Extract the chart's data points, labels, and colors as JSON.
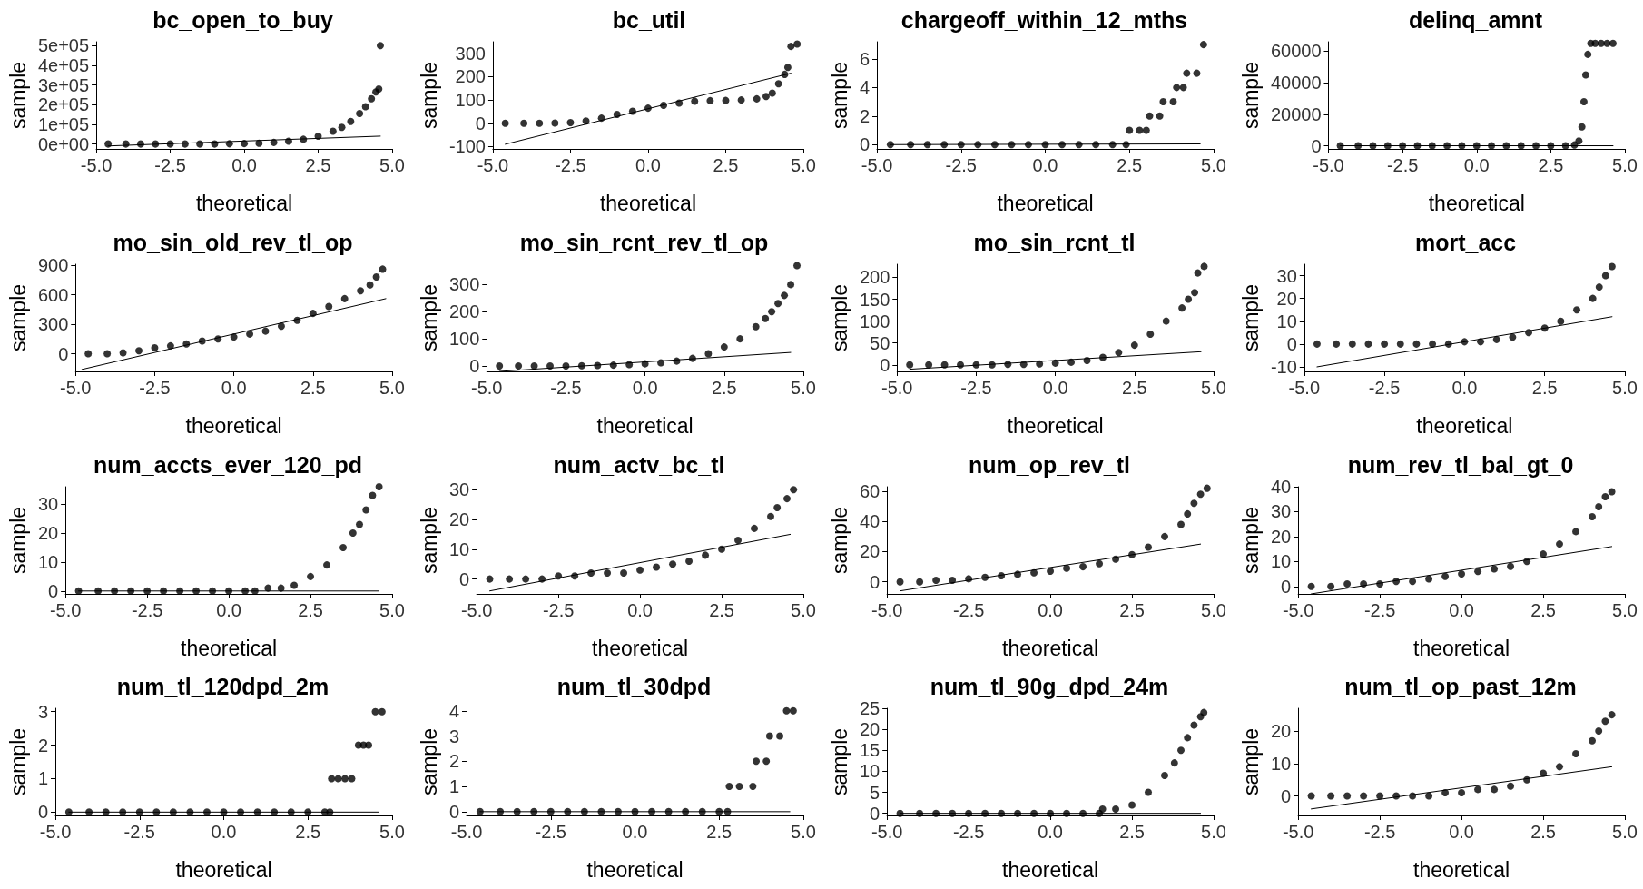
{
  "chart_data": [
    {
      "type": "scatter",
      "title": "bc_open_to_buy",
      "xlabel": "theoretical",
      "ylabel": "sample",
      "xlim": [
        -5,
        5
      ],
      "xticks": [
        {
          "value": -5,
          "label": "-5.0"
        },
        {
          "value": -2.5,
          "label": "-2.5"
        },
        {
          "value": 0,
          "label": "0.0"
        },
        {
          "value": 2.5,
          "label": "2.5"
        },
        {
          "value": 5,
          "label": "5.0"
        }
      ],
      "ylim": [
        -25000,
        520000
      ],
      "yticks": [
        {
          "value": 0,
          "label": "0e+00"
        },
        {
          "value": 100000,
          "label": "1e+05"
        },
        {
          "value": 200000,
          "label": "2e+05"
        },
        {
          "value": 300000,
          "label": "3e+05"
        },
        {
          "value": 400000,
          "label": "4e+05"
        },
        {
          "value": 500000,
          "label": "5e+05"
        }
      ],
      "grid": false,
      "series": [
        {
          "type": "scatter",
          "color": "#000000",
          "marker": "circle",
          "x": [
            -4.6,
            -4.0,
            -3.5,
            -3.0,
            -2.5,
            -2.0,
            -1.5,
            -1.0,
            -0.5,
            0,
            0.5,
            1.0,
            1.5,
            2.0,
            2.5,
            3.0,
            3.3,
            3.6,
            3.9,
            4.1,
            4.3,
            4.45,
            4.55,
            4.6
          ],
          "values": [
            0,
            0,
            0,
            0,
            0,
            0,
            0,
            0,
            1000,
            2000,
            4000,
            8000,
            14000,
            24000,
            40000,
            65000,
            85000,
            115000,
            155000,
            190000,
            230000,
            265000,
            280000,
            500000
          ]
        },
        {
          "type": "line",
          "color": "#000000",
          "marker": "none",
          "line_style": "solid",
          "x": [
            -4.6,
            4.6
          ],
          "values": [
            -10000,
            40000
          ]
        }
      ]
    },
    {
      "type": "scatter",
      "title": "bc_util",
      "xlabel": "theoretical",
      "ylabel": "sample",
      "xlim": [
        -5,
        5
      ],
      "xticks": [
        {
          "value": -5,
          "label": "-5.0"
        },
        {
          "value": -2.5,
          "label": "-2.5"
        },
        {
          "value": 0,
          "label": "0.0"
        },
        {
          "value": 2.5,
          "label": "2.5"
        },
        {
          "value": 5,
          "label": "5.0"
        }
      ],
      "ylim": [
        -110,
        350
      ],
      "yticks": [
        -100,
        0,
        100,
        200,
        300
      ],
      "grid": false,
      "series": [
        {
          "type": "scatter",
          "color": "#000000",
          "marker": "circle",
          "x": [
            -4.6,
            -4.0,
            -3.5,
            -3.0,
            -2.5,
            -2.0,
            -1.5,
            -1.0,
            -0.5,
            0,
            0.5,
            1.0,
            1.5,
            2.0,
            2.5,
            3.0,
            3.5,
            3.8,
            4.0,
            4.2,
            4.4,
            4.5,
            4.6,
            4.8
          ],
          "values": [
            0,
            0,
            0,
            1,
            3,
            10,
            22,
            38,
            52,
            65,
            77,
            87,
            95,
            97,
            98,
            100,
            105,
            115,
            130,
            170,
            210,
            240,
            330,
            340
          ]
        },
        {
          "type": "line",
          "color": "#000000",
          "marker": "none",
          "line_style": "solid",
          "x": [
            -4.6,
            4.6
          ],
          "values": [
            -90,
            215
          ]
        }
      ]
    },
    {
      "type": "scatter",
      "title": "chargeoff_within_12_mths",
      "xlabel": "theoretical",
      "ylabel": "sample",
      "xlim": [
        -5,
        5
      ],
      "xticks": [
        {
          "value": -5,
          "label": "-5.0"
        },
        {
          "value": -2.5,
          "label": "-2.5"
        },
        {
          "value": 0,
          "label": "0.0"
        },
        {
          "value": 2.5,
          "label": "2.5"
        },
        {
          "value": 5,
          "label": "5.0"
        }
      ],
      "ylim": [
        -0.3,
        7.2
      ],
      "yticks": [
        0,
        2,
        4,
        6
      ],
      "grid": false,
      "series": [
        {
          "type": "scatter",
          "color": "#000000",
          "marker": "circle",
          "x": [
            -4.6,
            -4.0,
            -3.5,
            -3.0,
            -2.5,
            -2.0,
            -1.5,
            -1.0,
            -0.5,
            0,
            0.5,
            1.0,
            1.5,
            2.0,
            2.4,
            2.5,
            2.8,
            3.0,
            3.1,
            3.4,
            3.5,
            3.8,
            3.9,
            4.1,
            4.2,
            4.5,
            4.7
          ],
          "values": [
            0,
            0,
            0,
            0,
            0,
            0,
            0,
            0,
            0,
            0,
            0,
            0,
            0,
            0,
            0,
            1,
            1,
            1,
            2,
            2,
            3,
            3,
            4,
            4,
            5,
            5,
            7
          ]
        },
        {
          "type": "line",
          "color": "#000000",
          "marker": "none",
          "line_style": "solid",
          "x": [
            -4.6,
            4.6
          ],
          "values": [
            0,
            0.05
          ]
        }
      ]
    },
    {
      "type": "scatter",
      "title": "delinq_amnt",
      "xlabel": "theoretical",
      "ylabel": "sample",
      "xlim": [
        -5,
        5
      ],
      "xticks": [
        {
          "value": -5,
          "label": "-5.0"
        },
        {
          "value": -2.5,
          "label": "-2.5"
        },
        {
          "value": 0,
          "label": "0.0"
        },
        {
          "value": 2.5,
          "label": "2.5"
        },
        {
          "value": 5,
          "label": "5.0"
        }
      ],
      "ylim": [
        -2000,
        66000
      ],
      "yticks": [
        0,
        20000,
        40000,
        60000
      ],
      "grid": false,
      "series": [
        {
          "type": "scatter",
          "color": "#000000",
          "marker": "circle",
          "x": [
            -4.6,
            -4.0,
            -3.5,
            -3.0,
            -2.5,
            -2.0,
            -1.5,
            -1.0,
            -0.5,
            0,
            0.5,
            1.0,
            1.5,
            2.0,
            2.5,
            3.0,
            3.3,
            3.45,
            3.55,
            3.62,
            3.68,
            3.75,
            3.85,
            4.0,
            4.2,
            4.4,
            4.6
          ],
          "values": [
            0,
            0,
            0,
            0,
            0,
            0,
            0,
            0,
            0,
            0,
            0,
            0,
            0,
            0,
            0,
            0,
            500,
            3000,
            12000,
            28000,
            45000,
            58000,
            65000,
            65000,
            65000,
            65000,
            65000
          ]
        },
        {
          "type": "line",
          "color": "#000000",
          "marker": "none",
          "line_style": "solid",
          "x": [
            -4.6,
            4.6
          ],
          "values": [
            0,
            0
          ]
        }
      ]
    },
    {
      "type": "scatter",
      "title": "mo_sin_old_rev_tl_op",
      "xlabel": "theoretical",
      "ylabel": "sample",
      "xlim": [
        -5,
        5
      ],
      "xticks": [
        {
          "value": -5,
          "label": "-5.0"
        },
        {
          "value": -2.5,
          "label": "-2.5"
        },
        {
          "value": 0,
          "label": "0.0"
        },
        {
          "value": 2.5,
          "label": "2.5"
        },
        {
          "value": 5,
          "label": "5.0"
        }
      ],
      "ylim": [
        -180,
        910
      ],
      "yticks": [
        0,
        300,
        600,
        900
      ],
      "grid": false,
      "series": [
        {
          "type": "scatter",
          "color": "#000000",
          "marker": "circle",
          "x": [
            -4.6,
            -4.0,
            -3.5,
            -3.0,
            -2.5,
            -2.0,
            -1.5,
            -1.0,
            -0.5,
            0,
            0.5,
            1.0,
            1.5,
            2.0,
            2.5,
            3.0,
            3.5,
            4.0,
            4.3,
            4.5,
            4.7
          ],
          "values": [
            0,
            0,
            10,
            30,
            60,
            80,
            100,
            130,
            150,
            170,
            200,
            230,
            280,
            340,
            410,
            480,
            560,
            640,
            700,
            780,
            860
          ]
        },
        {
          "type": "line",
          "color": "#000000",
          "marker": "none",
          "line_style": "solid",
          "x": [
            -4.8,
            4.8
          ],
          "values": [
            -160,
            560
          ]
        }
      ]
    },
    {
      "type": "scatter",
      "title": "mo_sin_rcnt_rev_tl_op",
      "xlabel": "theoretical",
      "ylabel": "sample",
      "xlim": [
        -5,
        5
      ],
      "xticks": [
        {
          "value": -5,
          "label": "-5.0"
        },
        {
          "value": -2.5,
          "label": "-2.5"
        },
        {
          "value": 0,
          "label": "0.0"
        },
        {
          "value": 2.5,
          "label": "2.5"
        },
        {
          "value": 5,
          "label": "5.0"
        }
      ],
      "ylim": [
        -20,
        375
      ],
      "yticks": [
        0,
        100,
        200,
        300
      ],
      "grid": false,
      "series": [
        {
          "type": "scatter",
          "color": "#000000",
          "marker": "circle",
          "x": [
            -4.6,
            -4.0,
            -3.5,
            -3.0,
            -2.5,
            -2.0,
            -1.5,
            -1.0,
            -0.5,
            0,
            0.5,
            1.0,
            1.5,
            2.0,
            2.5,
            3.0,
            3.5,
            3.8,
            4.0,
            4.2,
            4.4,
            4.6,
            4.8
          ],
          "values": [
            0,
            0,
            0,
            0,
            0,
            1,
            2,
            3,
            5,
            8,
            12,
            18,
            28,
            45,
            70,
            100,
            145,
            175,
            200,
            230,
            260,
            300,
            370
          ]
        },
        {
          "type": "line",
          "color": "#000000",
          "marker": "none",
          "line_style": "solid",
          "x": [
            -4.6,
            4.6
          ],
          "values": [
            -20,
            50
          ]
        }
      ]
    },
    {
      "type": "scatter",
      "title": "mo_sin_rcnt_tl",
      "xlabel": "theoretical",
      "ylabel": "sample",
      "xlim": [
        -5,
        5
      ],
      "xticks": [
        {
          "value": -5,
          "label": "-5.0"
        },
        {
          "value": -2.5,
          "label": "-2.5"
        },
        {
          "value": 0,
          "label": "0.0"
        },
        {
          "value": 2.5,
          "label": "2.5"
        },
        {
          "value": 5,
          "label": "5.0"
        }
      ],
      "ylim": [
        -15,
        230
      ],
      "yticks": [
        0,
        50,
        100,
        150,
        200
      ],
      "grid": false,
      "series": [
        {
          "type": "scatter",
          "color": "#000000",
          "marker": "circle",
          "x": [
            -4.6,
            -4.0,
            -3.5,
            -3.0,
            -2.5,
            -2.0,
            -1.5,
            -1.0,
            -0.5,
            0,
            0.5,
            1.0,
            1.5,
            2.0,
            2.5,
            3.0,
            3.5,
            4.0,
            4.2,
            4.4,
            4.5,
            4.7
          ],
          "values": [
            0,
            0,
            0,
            0,
            0,
            0,
            1,
            1,
            2,
            4,
            6,
            10,
            17,
            28,
            45,
            70,
            100,
            130,
            150,
            165,
            210,
            225
          ]
        },
        {
          "type": "line",
          "color": "#000000",
          "marker": "none",
          "line_style": "solid",
          "x": [
            -4.6,
            4.6
          ],
          "values": [
            -10,
            30
          ]
        }
      ]
    },
    {
      "type": "scatter",
      "title": "mort_acc",
      "xlabel": "theoretical",
      "ylabel": "sample",
      "xlim": [
        -5,
        5
      ],
      "xticks": [
        {
          "value": -5,
          "label": "-5.0"
        },
        {
          "value": -2.5,
          "label": "-2.5"
        },
        {
          "value": 0,
          "label": "0.0"
        },
        {
          "value": 2.5,
          "label": "2.5"
        },
        {
          "value": 5,
          "label": "5.0"
        }
      ],
      "ylim": [
        -12,
        35
      ],
      "yticks": [
        -10,
        0,
        10,
        20,
        30
      ],
      "grid": false,
      "series": [
        {
          "type": "scatter",
          "color": "#000000",
          "marker": "circle",
          "x": [
            -4.6,
            -4.0,
            -3.5,
            -3.0,
            -2.5,
            -2.0,
            -1.5,
            -1.0,
            -0.5,
            0,
            0.5,
            1.0,
            1.5,
            2.0,
            2.5,
            3.0,
            3.5,
            4.0,
            4.2,
            4.4,
            4.6
          ],
          "values": [
            0,
            0,
            0,
            0,
            0,
            0,
            0,
            0,
            0,
            1,
            1,
            2,
            3,
            5,
            7,
            10,
            15,
            20,
            25,
            30,
            34
          ]
        },
        {
          "type": "line",
          "color": "#000000",
          "marker": "none",
          "line_style": "solid",
          "x": [
            -4.6,
            4.6
          ],
          "values": [
            -10,
            12
          ]
        }
      ]
    },
    {
      "type": "scatter",
      "title": "num_accts_ever_120_pd",
      "xlabel": "theoretical",
      "ylabel": "sample",
      "xlim": [
        -5,
        5
      ],
      "xticks": [
        {
          "value": -5,
          "label": "-5.0"
        },
        {
          "value": -2.5,
          "label": "-2.5"
        },
        {
          "value": 0,
          "label": "0.0"
        },
        {
          "value": 2.5,
          "label": "2.5"
        },
        {
          "value": 5,
          "label": "5.0"
        }
      ],
      "ylim": [
        -1,
        36
      ],
      "yticks": [
        0,
        10,
        20,
        30
      ],
      "grid": false,
      "series": [
        {
          "type": "scatter",
          "color": "#000000",
          "marker": "circle",
          "x": [
            -4.6,
            -4.0,
            -3.5,
            -3.0,
            -2.5,
            -2.0,
            -1.5,
            -1.0,
            -0.5,
            0,
            0.5,
            0.8,
            1.2,
            1.6,
            2.0,
            2.5,
            3.0,
            3.5,
            3.8,
            4.0,
            4.2,
            4.4,
            4.6
          ],
          "values": [
            0,
            0,
            0,
            0,
            0,
            0,
            0,
            0,
            0,
            0,
            0,
            0,
            1,
            1,
            2,
            5,
            9,
            15,
            20,
            23,
            28,
            33,
            36
          ]
        },
        {
          "type": "line",
          "color": "#000000",
          "marker": "none",
          "line_style": "solid",
          "x": [
            -4.6,
            4.6
          ],
          "values": [
            0,
            0
          ]
        }
      ]
    },
    {
      "type": "scatter",
      "title": "num_actv_bc_tl",
      "xlabel": "theoretical",
      "ylabel": "sample",
      "xlim": [
        -5,
        5
      ],
      "xticks": [
        {
          "value": -5,
          "label": "-5.0"
        },
        {
          "value": -2.5,
          "label": "-2.5"
        },
        {
          "value": 0,
          "label": "0.0"
        },
        {
          "value": 2.5,
          "label": "2.5"
        },
        {
          "value": 5,
          "label": "5.0"
        }
      ],
      "ylim": [
        -5,
        31
      ],
      "yticks": [
        0,
        10,
        20,
        30
      ],
      "grid": false,
      "series": [
        {
          "type": "scatter",
          "color": "#000000",
          "marker": "circle",
          "x": [
            -4.6,
            -4.0,
            -3.5,
            -3.0,
            -2.5,
            -2.0,
            -1.5,
            -1.0,
            -0.5,
            0,
            0.5,
            1.0,
            1.5,
            2.0,
            2.5,
            3.0,
            3.5,
            4.0,
            4.2,
            4.5,
            4.7
          ],
          "values": [
            0,
            0,
            0,
            0,
            1,
            1,
            2,
            2,
            2,
            3,
            4,
            5,
            6,
            8,
            10,
            13,
            17,
            21,
            24,
            27,
            30
          ]
        },
        {
          "type": "line",
          "color": "#000000",
          "marker": "none",
          "line_style": "solid",
          "x": [
            -4.6,
            4.6
          ],
          "values": [
            -4,
            15
          ]
        }
      ]
    },
    {
      "type": "scatter",
      "title": "num_op_rev_tl",
      "xlabel": "theoretical",
      "ylabel": "sample",
      "xlim": [
        -5,
        5
      ],
      "xticks": [
        {
          "value": -5,
          "label": "-5.0"
        },
        {
          "value": -2.5,
          "label": "-2.5"
        },
        {
          "value": 0,
          "label": "0.0"
        },
        {
          "value": 2.5,
          "label": "2.5"
        },
        {
          "value": 5,
          "label": "5.0"
        }
      ],
      "ylim": [
        -8,
        63
      ],
      "yticks": [
        0,
        20,
        40,
        60
      ],
      "grid": false,
      "series": [
        {
          "type": "scatter",
          "color": "#000000",
          "marker": "circle",
          "x": [
            -4.6,
            -4.0,
            -3.5,
            -3.0,
            -2.5,
            -2.0,
            -1.5,
            -1.0,
            -0.5,
            0,
            0.5,
            1.0,
            1.5,
            2.0,
            2.5,
            3.0,
            3.5,
            4.0,
            4.2,
            4.4,
            4.6,
            4.8
          ],
          "values": [
            0,
            0,
            1,
            1,
            2,
            3,
            4,
            5,
            6,
            7,
            9,
            10,
            12,
            15,
            18,
            23,
            30,
            38,
            45,
            52,
            58,
            62
          ]
        },
        {
          "type": "line",
          "color": "#000000",
          "marker": "none",
          "line_style": "solid",
          "x": [
            -4.6,
            4.6
          ],
          "values": [
            -6,
            25
          ]
        }
      ]
    },
    {
      "type": "scatter",
      "title": "num_rev_tl_bal_gt_0",
      "xlabel": "theoretical",
      "ylabel": "sample",
      "xlim": [
        -5,
        5
      ],
      "xticks": [
        {
          "value": -5,
          "label": "-5.0"
        },
        {
          "value": -2.5,
          "label": "-2.5"
        },
        {
          "value": 0,
          "label": "0.0"
        },
        {
          "value": 2.5,
          "label": "2.5"
        },
        {
          "value": 5,
          "label": "5.0"
        }
      ],
      "ylim": [
        -3,
        40
      ],
      "yticks": [
        0,
        10,
        20,
        30,
        40
      ],
      "grid": false,
      "series": [
        {
          "type": "scatter",
          "color": "#000000",
          "marker": "circle",
          "x": [
            -4.6,
            -4.0,
            -3.5,
            -3.0,
            -2.5,
            -2.0,
            -1.5,
            -1.0,
            -0.5,
            0,
            0.5,
            1.0,
            1.5,
            2.0,
            2.5,
            3.0,
            3.5,
            4.0,
            4.2,
            4.4,
            4.6
          ],
          "values": [
            0,
            0,
            1,
            1,
            1,
            2,
            2,
            3,
            4,
            5,
            6,
            7,
            8,
            10,
            13,
            17,
            22,
            28,
            32,
            36,
            38
          ]
        },
        {
          "type": "line",
          "color": "#000000",
          "marker": "none",
          "line_style": "solid",
          "x": [
            -4.6,
            4.6
          ],
          "values": [
            -3,
            16
          ]
        }
      ]
    },
    {
      "type": "scatter",
      "title": "num_tl_120dpd_2m",
      "xlabel": "theoretical",
      "ylabel": "sample",
      "xlim": [
        -5,
        5
      ],
      "xticks": [
        {
          "value": -5,
          "label": "-5.0"
        },
        {
          "value": -2.5,
          "label": "-2.5"
        },
        {
          "value": 0,
          "label": "0.0"
        },
        {
          "value": 2.5,
          "label": "2.5"
        },
        {
          "value": 5,
          "label": "5.0"
        }
      ],
      "ylim": [
        -0.1,
        3.1
      ],
      "yticks": [
        0,
        1,
        2,
        3
      ],
      "grid": false,
      "series": [
        {
          "type": "scatter",
          "color": "#000000",
          "marker": "circle",
          "x": [
            -4.6,
            -4.0,
            -3.5,
            -3.0,
            -2.5,
            -2.0,
            -1.5,
            -1.0,
            -0.5,
            0,
            0.5,
            1.0,
            1.5,
            2.0,
            2.5,
            3.0,
            3.15,
            3.2,
            3.4,
            3.6,
            3.8,
            4.0,
            4.15,
            4.3,
            4.5,
            4.7
          ],
          "values": [
            0,
            0,
            0,
            0,
            0,
            0,
            0,
            0,
            0,
            0,
            0,
            0,
            0,
            0,
            0,
            0,
            0,
            1,
            1,
            1,
            1,
            2,
            2,
            2,
            3,
            3
          ]
        },
        {
          "type": "line",
          "color": "#000000",
          "marker": "none",
          "line_style": "solid",
          "x": [
            -4.6,
            4.6
          ],
          "values": [
            0,
            0
          ]
        }
      ]
    },
    {
      "type": "scatter",
      "title": "num_tl_30dpd",
      "xlabel": "theoretical",
      "ylabel": "sample",
      "xlim": [
        -5,
        5
      ],
      "xticks": [
        {
          "value": -5,
          "label": "-5.0"
        },
        {
          "value": -2.5,
          "label": "-2.5"
        },
        {
          "value": 0,
          "label": "0.0"
        },
        {
          "value": 2.5,
          "label": "2.5"
        },
        {
          "value": 5,
          "label": "5.0"
        }
      ],
      "ylim": [
        -0.15,
        4.1
      ],
      "yticks": [
        0,
        1,
        2,
        3,
        4
      ],
      "grid": false,
      "series": [
        {
          "type": "scatter",
          "color": "#000000",
          "marker": "circle",
          "x": [
            -4.6,
            -4.0,
            -3.5,
            -3.0,
            -2.5,
            -2.0,
            -1.5,
            -1.0,
            -0.5,
            0,
            0.5,
            1.0,
            1.5,
            2.0,
            2.5,
            2.75,
            2.8,
            3.1,
            3.5,
            3.6,
            3.9,
            4.0,
            4.3,
            4.5,
            4.7
          ],
          "values": [
            0,
            0,
            0,
            0,
            0,
            0,
            0,
            0,
            0,
            0,
            0,
            0,
            0,
            0,
            0,
            0,
            1,
            1,
            1,
            2,
            2,
            3,
            3,
            4,
            4
          ]
        },
        {
          "type": "line",
          "color": "#000000",
          "marker": "none",
          "line_style": "solid",
          "x": [
            -4.6,
            4.6
          ],
          "values": [
            0,
            0
          ]
        }
      ]
    },
    {
      "type": "scatter",
      "title": "num_tl_90g_dpd_24m",
      "xlabel": "theoretical",
      "ylabel": "sample",
      "xlim": [
        -5,
        5
      ],
      "xticks": [
        {
          "value": -5,
          "label": "-5.0"
        },
        {
          "value": -2.5,
          "label": "-2.5"
        },
        {
          "value": 0,
          "label": "0.0"
        },
        {
          "value": 2.5,
          "label": "2.5"
        },
        {
          "value": 5,
          "label": "5.0"
        }
      ],
      "ylim": [
        -0.5,
        25
      ],
      "yticks": [
        0,
        5,
        10,
        15,
        20,
        25
      ],
      "grid": false,
      "series": [
        {
          "type": "scatter",
          "color": "#000000",
          "marker": "circle",
          "x": [
            -4.6,
            -4.0,
            -3.5,
            -3.0,
            -2.5,
            -2.0,
            -1.5,
            -1.0,
            -0.5,
            0,
            0.5,
            1.0,
            1.5,
            1.6,
            2.0,
            2.5,
            3.0,
            3.5,
            3.8,
            4.0,
            4.2,
            4.4,
            4.6,
            4.7
          ],
          "values": [
            0,
            0,
            0,
            0,
            0,
            0,
            0,
            0,
            0,
            0,
            0,
            0,
            0,
            1,
            1,
            2,
            5,
            9,
            12,
            15,
            18,
            21,
            23,
            24
          ]
        },
        {
          "type": "line",
          "color": "#000000",
          "marker": "none",
          "line_style": "solid",
          "x": [
            -4.6,
            4.6
          ],
          "values": [
            0,
            0
          ]
        }
      ]
    },
    {
      "type": "scatter",
      "title": "num_tl_op_past_12m",
      "xlabel": "theoretical",
      "ylabel": "sample",
      "xlim": [
        -5,
        5
      ],
      "xticks": [
        {
          "value": -5,
          "label": "-5.0"
        },
        {
          "value": -2.5,
          "label": "-2.5"
        },
        {
          "value": 0,
          "label": "0.0"
        },
        {
          "value": 2.5,
          "label": "2.5"
        },
        {
          "value": 5,
          "label": "5.0"
        }
      ],
      "ylim": [
        -6,
        27
      ],
      "yticks": [
        0,
        10,
        20
      ],
      "grid": false,
      "series": [
        {
          "type": "scatter",
          "color": "#000000",
          "marker": "circle",
          "x": [
            -4.6,
            -4.0,
            -3.5,
            -3.0,
            -2.5,
            -2.0,
            -1.5,
            -1.0,
            -0.5,
            0,
            0.5,
            1.0,
            1.5,
            2.0,
            2.5,
            3.0,
            3.5,
            4.0,
            4.2,
            4.4,
            4.6
          ],
          "values": [
            0,
            0,
            0,
            0,
            0,
            0,
            0,
            0,
            1,
            1,
            2,
            2,
            3,
            5,
            7,
            9,
            13,
            17,
            20,
            23,
            25
          ]
        },
        {
          "type": "line",
          "color": "#000000",
          "marker": "none",
          "line_style": "solid",
          "x": [
            -4.6,
            4.6
          ],
          "values": [
            -4,
            9
          ]
        }
      ]
    }
  ]
}
